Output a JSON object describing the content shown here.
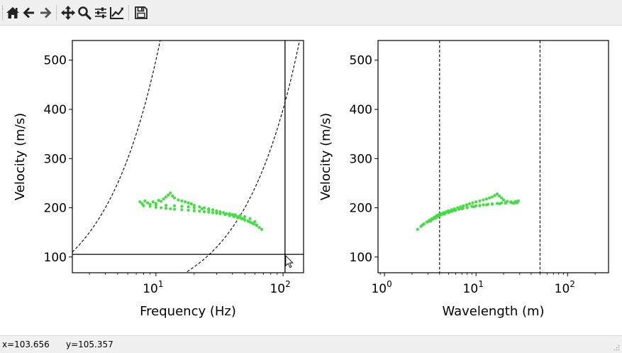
{
  "toolbar": {
    "buttons": [
      {
        "name": "home",
        "icon": "home-icon"
      },
      {
        "name": "back",
        "icon": "arrow-left-icon"
      },
      {
        "name": "forward",
        "icon": "arrow-right-icon"
      },
      {
        "name": "pan",
        "icon": "move-icon"
      },
      {
        "name": "zoom",
        "icon": "magnifier-icon"
      },
      {
        "name": "configure",
        "icon": "sliders-icon"
      },
      {
        "name": "edit-axes",
        "icon": "line-chart-icon"
      },
      {
        "name": "save",
        "icon": "floppy-disk-icon"
      }
    ]
  },
  "status": {
    "x_text": "x=103.656",
    "y_text": "y=105.357"
  },
  "colors": {
    "data": "#3ee03e",
    "axes": "#000000",
    "toolbar_bg": "#f0f0f0"
  },
  "chart_data": [
    {
      "type": "scatter",
      "xlabel": "Frequency (Hz)",
      "ylabel": "Velocity (m/s)",
      "xscale": "log",
      "xlim": [
        2.2,
        145
      ],
      "ylim": [
        68,
        540
      ],
      "xticks": [
        {
          "value": 10,
          "base": "10",
          "exp": "1"
        },
        {
          "value": 100,
          "base": "10",
          "exp": "2"
        }
      ],
      "yticks": [
        100,
        200,
        300,
        400,
        500
      ],
      "crosshair": {
        "x": 103.656,
        "y": 105.357
      },
      "dashed_curves_wavelength_m": [
        4,
        50
      ],
      "points": [
        [
          7.5,
          212
        ],
        [
          7.8,
          208
        ],
        [
          8.2,
          214
        ],
        [
          8.6,
          210
        ],
        [
          9,
          207
        ],
        [
          9.5,
          212
        ],
        [
          10,
          209
        ],
        [
          10.5,
          215
        ],
        [
          11,
          213
        ],
        [
          11.5,
          218
        ],
        [
          12,
          222
        ],
        [
          12.5,
          226
        ],
        [
          13,
          230
        ],
        [
          13.5,
          224
        ],
        [
          14,
          220
        ],
        [
          15,
          216
        ],
        [
          16,
          214
        ],
        [
          17,
          212
        ],
        [
          18,
          210
        ],
        [
          19,
          208
        ],
        [
          20,
          205
        ],
        [
          22,
          202
        ],
        [
          24,
          200
        ],
        [
          26,
          198
        ],
        [
          28,
          196
        ],
        [
          30,
          194
        ],
        [
          32,
          192
        ],
        [
          34,
          190
        ],
        [
          36,
          188
        ],
        [
          38,
          187
        ],
        [
          40,
          186
        ],
        [
          42,
          184
        ],
        [
          44,
          182
        ],
        [
          46,
          180
        ],
        [
          48,
          178
        ],
        [
          50,
          176
        ],
        [
          53,
          173
        ],
        [
          56,
          170
        ],
        [
          59,
          167
        ],
        [
          62,
          164
        ],
        [
          65,
          160
        ],
        [
          68,
          156
        ],
        [
          8,
          204
        ],
        [
          9,
          203
        ],
        [
          10,
          201
        ],
        [
          11,
          200
        ],
        [
          12,
          199
        ],
        [
          13,
          198
        ],
        [
          14,
          197
        ],
        [
          16,
          196
        ],
        [
          18,
          195
        ],
        [
          20,
          194
        ],
        [
          22,
          193
        ],
        [
          24,
          192
        ],
        [
          26,
          191
        ],
        [
          28,
          190
        ],
        [
          30,
          189
        ],
        [
          32,
          188
        ],
        [
          35,
          186
        ],
        [
          38,
          184
        ],
        [
          41,
          182
        ],
        [
          44,
          180
        ],
        [
          47,
          178
        ],
        [
          50,
          175
        ],
        [
          54,
          172
        ],
        [
          58,
          168
        ],
        [
          62,
          165
        ],
        [
          10,
          206
        ],
        [
          12,
          205
        ],
        [
          14,
          204
        ],
        [
          16,
          203
        ],
        [
          18,
          202
        ],
        [
          20,
          200
        ],
        [
          23,
          198
        ],
        [
          26,
          196
        ],
        [
          30,
          193
        ],
        [
          34,
          190
        ],
        [
          38,
          188
        ],
        [
          42,
          186
        ],
        [
          46,
          184
        ],
        [
          50,
          182
        ],
        [
          55,
          178
        ],
        [
          60,
          172
        ]
      ]
    },
    {
      "type": "scatter",
      "xlabel": "Wavelength (m)",
      "ylabel": "Velocity (m/s)",
      "xscale": "log",
      "xlim": [
        0.85,
        280
      ],
      "ylim": [
        68,
        540
      ],
      "xticks": [
        {
          "value": 1,
          "base": "10",
          "exp": "0"
        },
        {
          "value": 10,
          "base": "10",
          "exp": "1"
        },
        {
          "value": 100,
          "base": "10",
          "exp": "2"
        }
      ],
      "yticks": [
        100,
        200,
        300,
        400,
        500
      ],
      "vlines": [
        4,
        50
      ],
      "points": [
        [
          2.3,
          156
        ],
        [
          2.5,
          162
        ],
        [
          2.7,
          167
        ],
        [
          2.9,
          171
        ],
        [
          3.1,
          175
        ],
        [
          3.3,
          178
        ],
        [
          3.5,
          181
        ],
        [
          3.7,
          184
        ],
        [
          3.9,
          186
        ],
        [
          4.1,
          188
        ],
        [
          4.4,
          190
        ],
        [
          4.7,
          192
        ],
        [
          5,
          194
        ],
        [
          5.4,
          196
        ],
        [
          5.8,
          198
        ],
        [
          6.3,
          200
        ],
        [
          6.8,
          202
        ],
        [
          7.3,
          204
        ],
        [
          7.9,
          206
        ],
        [
          8.5,
          208
        ],
        [
          9.2,
          210
        ],
        [
          10,
          212
        ],
        [
          11,
          214
        ],
        [
          12,
          216
        ],
        [
          13,
          218
        ],
        [
          14,
          220
        ],
        [
          15,
          222
        ],
        [
          16,
          225
        ],
        [
          17,
          228
        ],
        [
          18,
          224
        ],
        [
          19,
          220
        ],
        [
          20,
          216
        ],
        [
          22,
          213
        ],
        [
          24,
          211
        ],
        [
          26,
          209
        ],
        [
          28,
          210
        ],
        [
          29,
          214
        ],
        [
          2.6,
          165
        ],
        [
          3,
          172
        ],
        [
          3.4,
          177
        ],
        [
          3.8,
          182
        ],
        [
          4.2,
          186
        ],
        [
          4.6,
          189
        ],
        [
          5.2,
          192
        ],
        [
          5.8,
          195
        ],
        [
          6.5,
          197
        ],
        [
          7.2,
          199
        ],
        [
          8,
          201
        ],
        [
          9,
          203
        ],
        [
          10,
          204
        ],
        [
          11,
          205
        ],
        [
          12,
          206
        ],
        [
          13.5,
          207
        ],
        [
          15,
          208
        ],
        [
          17,
          209
        ],
        [
          19,
          210
        ],
        [
          21,
          211
        ],
        [
          24,
          212
        ],
        [
          27,
          213
        ],
        [
          3.2,
          173
        ],
        [
          3.6,
          179
        ],
        [
          4,
          184
        ],
        [
          4.5,
          187
        ],
        [
          5,
          190
        ],
        [
          5.5,
          193
        ],
        [
          6,
          195
        ],
        [
          7,
          198
        ],
        [
          8,
          200
        ],
        [
          9.5,
          202
        ],
        [
          11,
          204
        ],
        [
          13,
          206
        ],
        [
          15,
          207
        ],
        [
          18,
          208
        ],
        [
          21,
          209
        ],
        [
          25,
          210
        ]
      ]
    }
  ]
}
